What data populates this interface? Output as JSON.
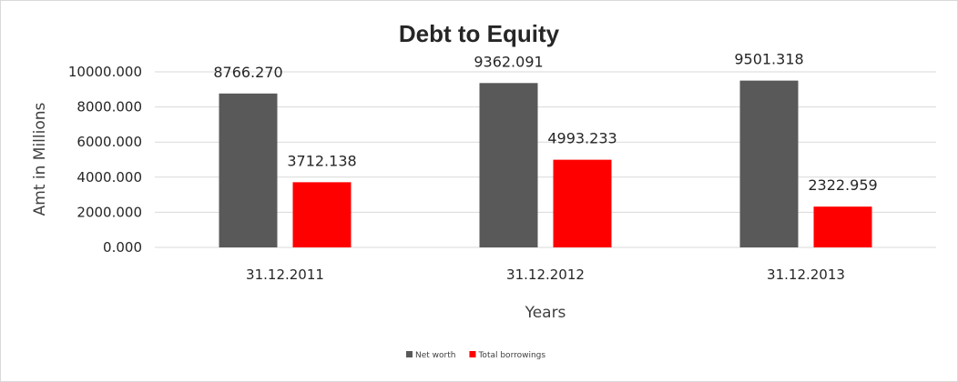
{
  "chart_data": {
    "type": "bar",
    "title": "Debt to Equity",
    "xlabel": "Years",
    "ylabel": "Amt in Millions",
    "categories": [
      "31.12.2011",
      "31.12.2012",
      "31.12.2013"
    ],
    "series": [
      {
        "name": "Net worth",
        "values": [
          8766.27,
          9362.091,
          9501.318
        ],
        "labels": [
          "8766.270",
          "9362.091",
          "9501.318"
        ],
        "color": "#595959"
      },
      {
        "name": "Total borrowings",
        "values": [
          3712.138,
          4993.233,
          2322.959
        ],
        "labels": [
          "3712.138",
          "4993.233",
          "2322.959"
        ],
        "color": "#ff0000"
      }
    ],
    "ylim": [
      0,
      10000
    ],
    "yticks": [
      0,
      2000,
      4000,
      6000,
      8000,
      10000
    ],
    "ytick_labels": [
      "0.000",
      "2000.000",
      "4000.000",
      "6000.000",
      "8000.000",
      "10000.000"
    ],
    "grid": true,
    "legend_position": "bottom"
  }
}
